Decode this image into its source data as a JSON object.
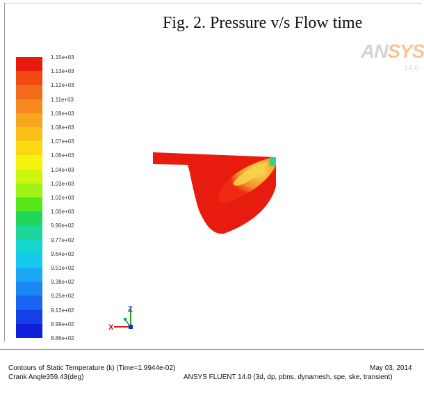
{
  "figure": {
    "title": "Fig. 2. Pressure v/s Flow time"
  },
  "logo": {
    "name_part1": "AN",
    "name_part2": "SYS",
    "version": "14.0"
  },
  "legend": {
    "ticks": [
      "1.15e+03",
      "1.13e+03",
      "1.12e+03",
      "1.11e+03",
      "1.09e+03",
      "1.08e+03",
      "1.07e+03",
      "1.06e+03",
      "1.04e+03",
      "1.03e+03",
      "1.02e+03",
      "1.00e+03",
      "9.90e+02",
      "9.77e+02",
      "9.64e+02",
      "9.51e+02",
      "9.38e+02",
      "9.25e+02",
      "9.12e+02",
      "8.99e+02",
      "8.86e+02"
    ],
    "colors": [
      "#e81c0e",
      "#f04a12",
      "#f26b1a",
      "#f5891e",
      "#f8a51f",
      "#f9c018",
      "#fbd90f",
      "#f5f20d",
      "#cdf50f",
      "#9ef216",
      "#55e61c",
      "#22d65b",
      "#1cd69c",
      "#14d6cf",
      "#16c9ef",
      "#1aa9f2",
      "#1a87f2",
      "#1a64f2",
      "#1540e8",
      "#0f1fd9"
    ]
  },
  "axes": {
    "z_label": "Z",
    "x_label": "X"
  },
  "footer": {
    "contour_desc": "Contours of Static Temperature (k)  (Time=1.9944e-02)",
    "crank_angle": "Crank Angle359.43(deg)",
    "date": "May 03, 2014",
    "solver": "ANSYS FLUENT 14.0 (3d, dp, pbns, dynamesh, spe, ske, transient)"
  }
}
